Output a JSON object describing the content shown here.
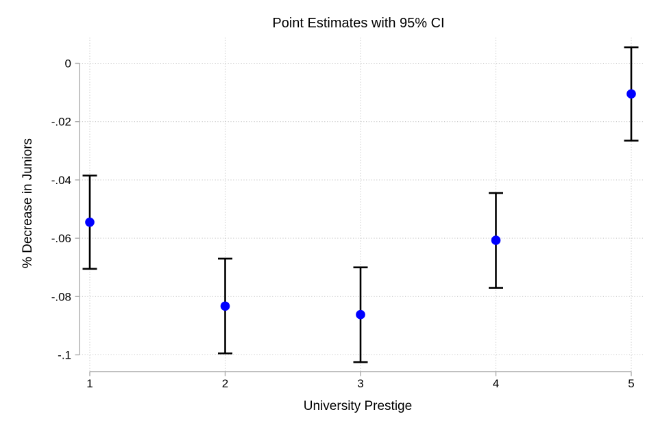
{
  "chart_data": {
    "type": "scatter",
    "subtype": "point-estimates-with-error-bars",
    "title": "Point Estimates with 95% CI",
    "xlabel": "University Prestige",
    "ylabel": "% Decrease in Juniors",
    "x_categories": [
      1,
      2,
      3,
      4,
      5
    ],
    "x_tick_labels": [
      "1",
      "2",
      "3",
      "4",
      "5"
    ],
    "y_ticks": [
      {
        "value": 0,
        "label": "0"
      },
      {
        "value": -0.02,
        "label": "-.02"
      },
      {
        "value": -0.04,
        "label": "-.04"
      },
      {
        "value": -0.06,
        "label": "-.06"
      },
      {
        "value": -0.08,
        "label": "-.08"
      },
      {
        "value": -0.1,
        "label": "-.1"
      }
    ],
    "ylim": [
      -0.1058,
      0.0088
    ],
    "grid": true,
    "grid_style": "dotted",
    "legend_position": "none",
    "series": [
      {
        "name": "Point estimate with 95% CI",
        "points": [
          {
            "x": 1,
            "estimate": -0.0545,
            "ci_low": -0.0705,
            "ci_high": -0.0385
          },
          {
            "x": 2,
            "estimate": -0.0833,
            "ci_low": -0.0995,
            "ci_high": -0.067
          },
          {
            "x": 3,
            "estimate": -0.0862,
            "ci_low": -0.1025,
            "ci_high": -0.07
          },
          {
            "x": 4,
            "estimate": -0.0607,
            "ci_low": -0.077,
            "ci_high": -0.0445
          },
          {
            "x": 5,
            "estimate": -0.0105,
            "ci_low": -0.0265,
            "ci_high": 0.0055
          }
        ]
      }
    ],
    "colors": {
      "marker": "#0000ff",
      "ci_bar": "#000000",
      "grid": "#c8c8c8",
      "axis": "#ababab",
      "text": "#000000",
      "background": "#ffffff"
    }
  }
}
